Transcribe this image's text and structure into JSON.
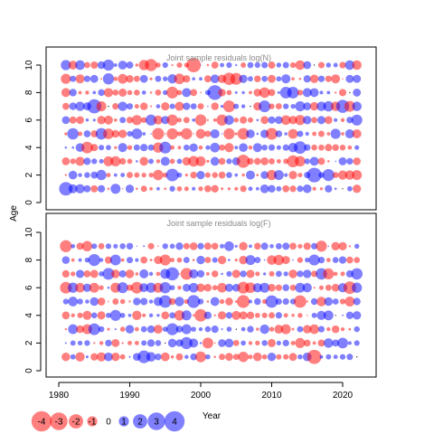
{
  "chart_data": {
    "type": "scatter",
    "ylabel": "Age",
    "xlabel": "Year",
    "x_range": [
      1981,
      2022
    ],
    "x_ticks": [
      1980,
      1990,
      2000,
      2010,
      2020
    ],
    "x_tick_labels": [
      "1980",
      "1990",
      "2000",
      "2010",
      "2020"
    ],
    "grid": false,
    "colors": {
      "positive": "#0000ff",
      "negative": "#ff0000",
      "alpha": 0.5
    },
    "panels": [
      {
        "title": "Joint sample residuals log(N)",
        "ylim": [
          0,
          10
        ],
        "y_ticks": [
          0,
          2,
          4,
          6,
          8,
          10
        ],
        "y_tick_labels": [
          "0",
          "2",
          "4",
          "6",
          "8",
          "10"
        ],
        "ages": [
          1,
          2,
          3,
          4,
          5,
          6,
          7,
          8,
          9,
          10
        ],
        "residual_seed": 7
      },
      {
        "title": "Joint sample residuals log(F)",
        "ylim": [
          0,
          10
        ],
        "y_ticks": [
          0,
          2,
          4,
          6,
          8,
          10
        ],
        "y_tick_labels": [
          "0",
          "2",
          "4",
          "6",
          "8",
          "10"
        ],
        "ages": [
          1,
          2,
          3,
          4,
          5,
          6,
          7,
          8,
          9
        ],
        "residual_seed": 19
      }
    ],
    "legend": {
      "placement": "bottom-left",
      "values": [
        -4,
        -3,
        -2,
        -1,
        0,
        1,
        2,
        3,
        4
      ],
      "labels": [
        "-4",
        "-3",
        "-2",
        "-1",
        "0",
        "1",
        "2",
        "3",
        "4"
      ]
    }
  }
}
